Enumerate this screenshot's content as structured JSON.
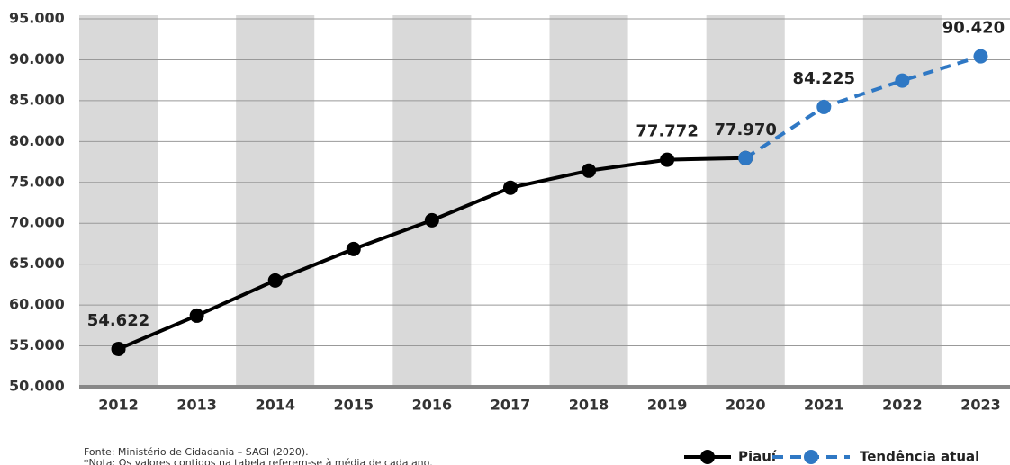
{
  "chart_data": {
    "type": "line",
    "categories": [
      "2012",
      "2013",
      "2014",
      "2015",
      "2016",
      "2017",
      "2018",
      "2019",
      "2020",
      "2021",
      "2022",
      "2023"
    ],
    "series": [
      {
        "name": "Piauí",
        "color": "#000000",
        "dashed": false,
        "values": [
          54622,
          58700,
          63000,
          66850,
          70370,
          74340,
          76430,
          77772,
          77970,
          null,
          null,
          null
        ],
        "value_labels": [
          "54.622",
          null,
          null,
          null,
          null,
          null,
          null,
          "77.772",
          null,
          null,
          null,
          null
        ]
      },
      {
        "name": "Tendência atual",
        "color": "#2f78c4",
        "dashed": true,
        "values": [
          null,
          null,
          null,
          null,
          null,
          null,
          null,
          null,
          77970,
          84225,
          87450,
          90420
        ],
        "value_labels": [
          null,
          null,
          null,
          null,
          null,
          null,
          null,
          null,
          "77.970",
          "84.225",
          null,
          "90.420"
        ]
      }
    ],
    "ylim": [
      50000,
      95000
    ],
    "yticks": [
      {
        "value": 50000,
        "label": "50.000"
      },
      {
        "value": 55000,
        "label": "55.000"
      },
      {
        "value": 60000,
        "label": "60.000"
      },
      {
        "value": 65000,
        "label": "65.000"
      },
      {
        "value": 70000,
        "label": "70.000"
      },
      {
        "value": 75000,
        "label": "75.000"
      },
      {
        "value": 80000,
        "label": "80.000"
      },
      {
        "value": 85000,
        "label": "85.000"
      },
      {
        "value": 90000,
        "label": "90.000"
      },
      {
        "value": 95000,
        "label": "95.000"
      }
    ],
    "grid": true,
    "legend": "bottom-right",
    "notes": [
      "Fonte: Ministério de Cidadania – SAGI (2020).",
      "*Nota: Os valores contidos na tabela referem-se à média de cada ano."
    ]
  }
}
